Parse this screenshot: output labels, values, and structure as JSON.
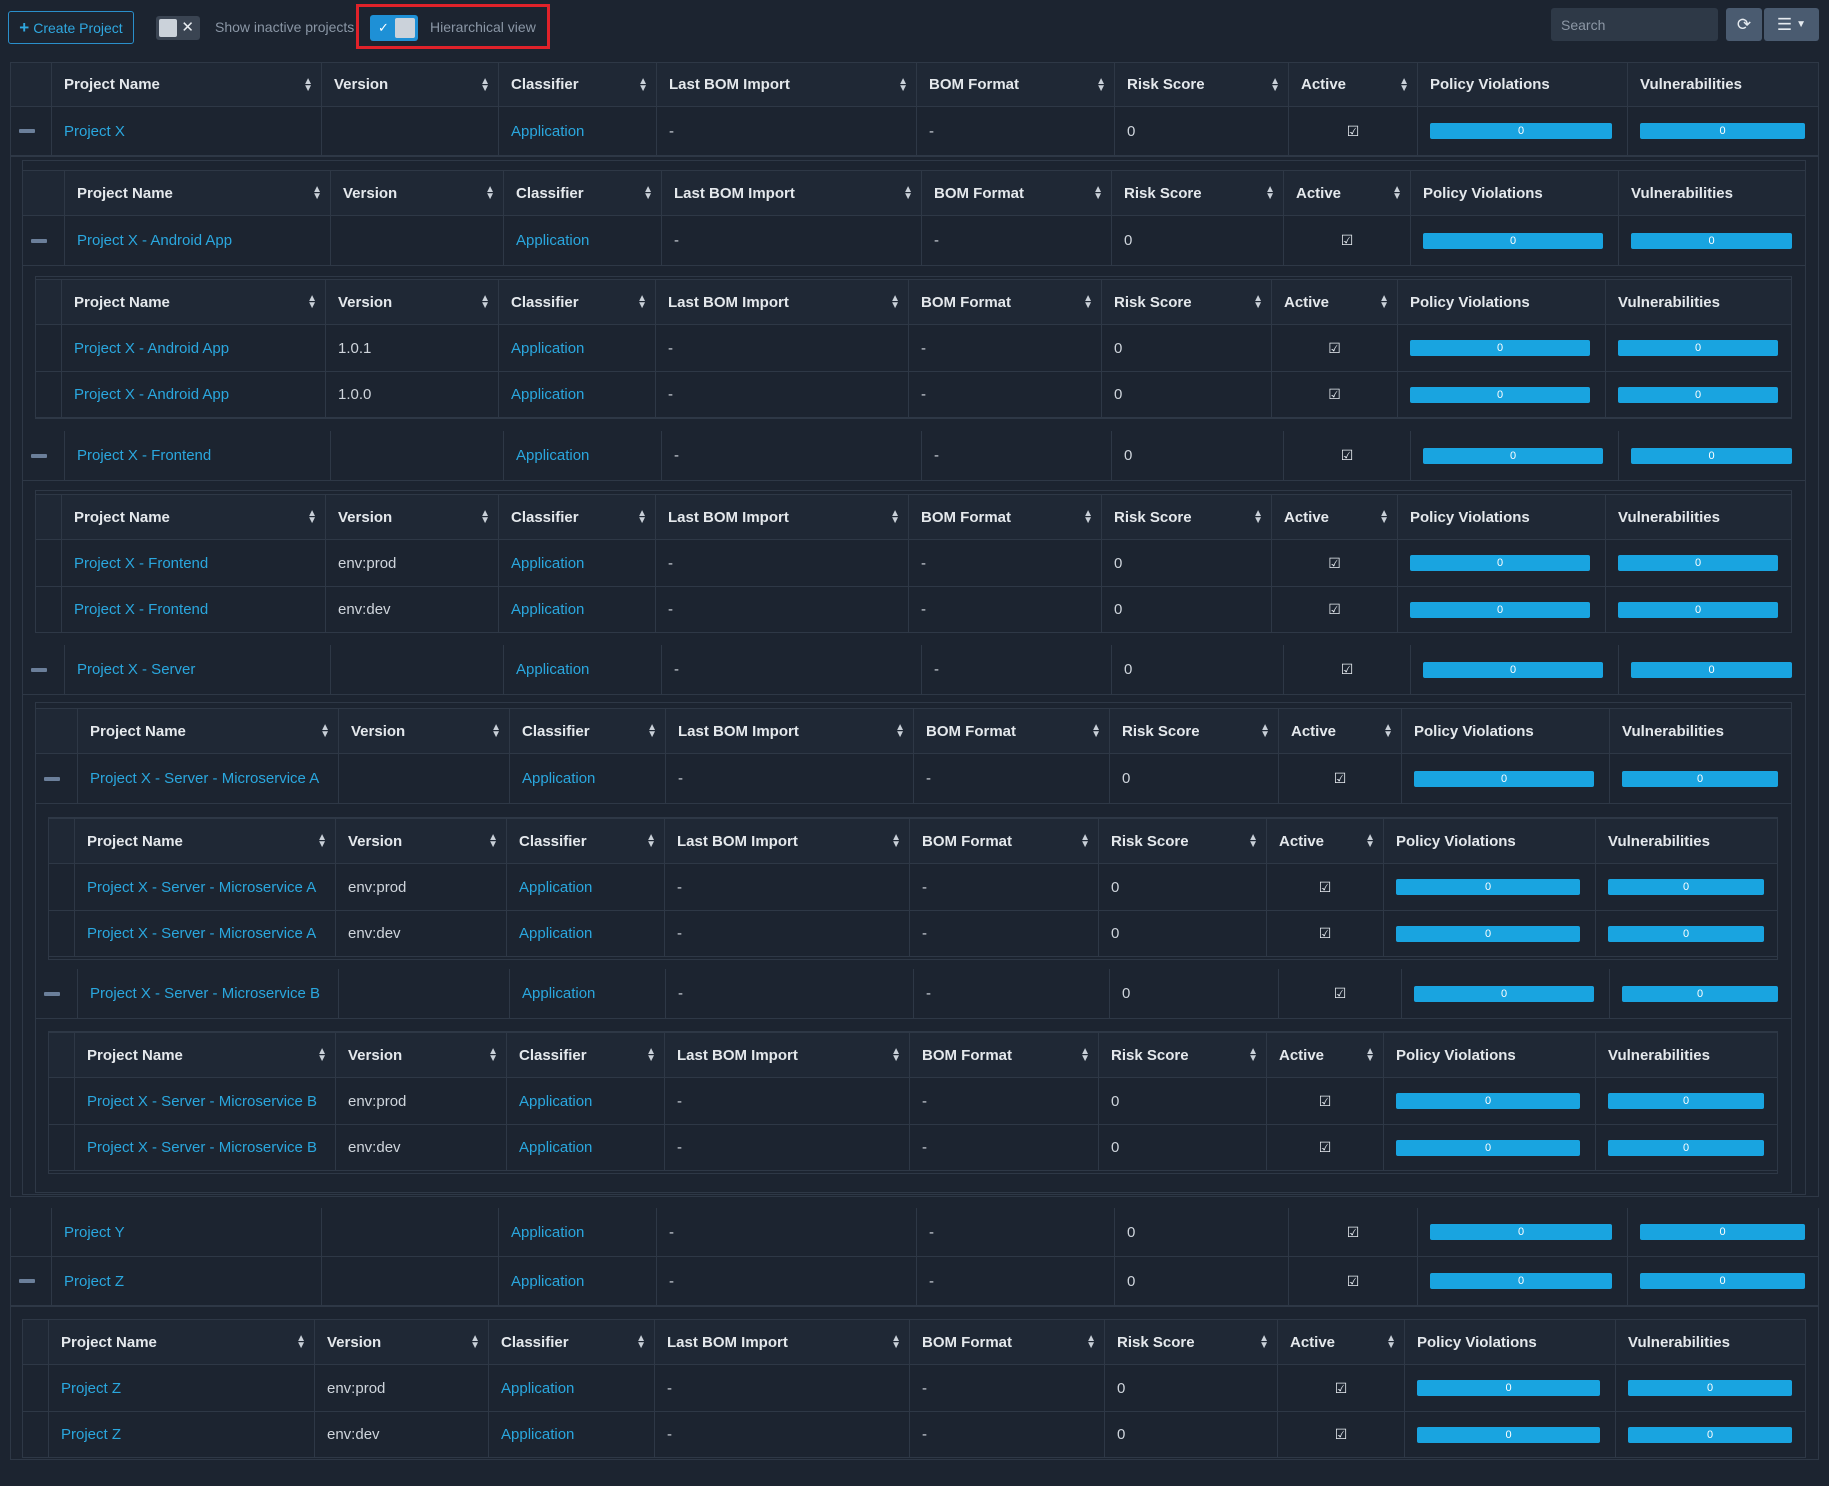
{
  "toolbar": {
    "create_label": "Create Project",
    "show_inactive_label": "Show inactive projects",
    "show_inactive_on": false,
    "hierarchical_label": "Hierarchical view",
    "hierarchical_on": true,
    "search_placeholder": "Search",
    "refresh_icon": "refresh-icon",
    "columns_icon": "list-icon"
  },
  "columns": [
    "Project Name",
    "Version",
    "Classifier",
    "Last BOM Import",
    "BOM Format",
    "Risk Score",
    "Active",
    "Policy Violations",
    "Vulnerabilities"
  ],
  "colors": {
    "accent": "#2aa7de",
    "bar": "#19a4e0",
    "highlight": "#e0222a",
    "background": "#1c2430"
  },
  "tables": [
    {
      "id": "root",
      "rows": [
        {
          "name": "Project X",
          "version": "",
          "classifier": "Application",
          "last_bom": "-",
          "bom_format": "-",
          "risk": "0",
          "active": true,
          "policy": "0",
          "vulns": "0",
          "expanded": true
        },
        {
          "name": "Project Y",
          "version": "",
          "classifier": "Application",
          "last_bom": "-",
          "bom_format": "-",
          "risk": "0",
          "active": true,
          "policy": "0",
          "vulns": "0",
          "expanded": false
        },
        {
          "name": "Project Z",
          "version": "",
          "classifier": "Application",
          "last_bom": "-",
          "bom_format": "-",
          "risk": "0",
          "active": true,
          "policy": "0",
          "vulns": "0",
          "expanded": true
        }
      ]
    },
    {
      "id": "x-children",
      "rows": [
        {
          "name": "Project X - Android App",
          "version": "",
          "classifier": "Application",
          "last_bom": "-",
          "bom_format": "-",
          "risk": "0",
          "active": true,
          "policy": "0",
          "vulns": "0",
          "expanded": true
        },
        {
          "name": "Project X - Frontend",
          "version": "",
          "classifier": "Application",
          "last_bom": "-",
          "bom_format": "-",
          "risk": "0",
          "active": true,
          "policy": "0",
          "vulns": "0",
          "expanded": true
        },
        {
          "name": "Project X - Server",
          "version": "",
          "classifier": "Application",
          "last_bom": "-",
          "bom_format": "-",
          "risk": "0",
          "active": true,
          "policy": "0",
          "vulns": "0",
          "expanded": true
        }
      ]
    },
    {
      "id": "android-versions",
      "rows": [
        {
          "name": "Project X - Android App",
          "version": "1.0.1",
          "classifier": "Application",
          "last_bom": "-",
          "bom_format": "-",
          "risk": "0",
          "active": true,
          "policy": "0",
          "vulns": "0"
        },
        {
          "name": "Project X - Android App",
          "version": "1.0.0",
          "classifier": "Application",
          "last_bom": "-",
          "bom_format": "-",
          "risk": "0",
          "active": true,
          "policy": "0",
          "vulns": "0"
        }
      ]
    },
    {
      "id": "frontend-versions",
      "rows": [
        {
          "name": "Project X - Frontend",
          "version": "env:prod",
          "classifier": "Application",
          "last_bom": "-",
          "bom_format": "-",
          "risk": "0",
          "active": true,
          "policy": "0",
          "vulns": "0"
        },
        {
          "name": "Project X - Frontend",
          "version": "env:dev",
          "classifier": "Application",
          "last_bom": "-",
          "bom_format": "-",
          "risk": "0",
          "active": true,
          "policy": "0",
          "vulns": "0"
        }
      ]
    },
    {
      "id": "server-children",
      "rows": [
        {
          "name": "Project X - Server - Microservice A",
          "version": "",
          "classifier": "Application",
          "last_bom": "-",
          "bom_format": "-",
          "risk": "0",
          "active": true,
          "policy": "0",
          "vulns": "0",
          "expanded": true
        },
        {
          "name": "Project X - Server - Microservice B",
          "version": "",
          "classifier": "Application",
          "last_bom": "-",
          "bom_format": "-",
          "risk": "0",
          "active": true,
          "policy": "0",
          "vulns": "0",
          "expanded": true
        }
      ]
    },
    {
      "id": "msa-versions",
      "rows": [
        {
          "name": "Project X - Server - Microservice A",
          "version": "env:prod",
          "classifier": "Application",
          "last_bom": "-",
          "bom_format": "-",
          "risk": "0",
          "active": true,
          "policy": "0",
          "vulns": "0"
        },
        {
          "name": "Project X - Server - Microservice A",
          "version": "env:dev",
          "classifier": "Application",
          "last_bom": "-",
          "bom_format": "-",
          "risk": "0",
          "active": true,
          "policy": "0",
          "vulns": "0"
        }
      ]
    },
    {
      "id": "msb-versions",
      "rows": [
        {
          "name": "Project X - Server - Microservice B",
          "version": "env:prod",
          "classifier": "Application",
          "last_bom": "-",
          "bom_format": "-",
          "risk": "0",
          "active": true,
          "policy": "0",
          "vulns": "0"
        },
        {
          "name": "Project X - Server - Microservice B",
          "version": "env:dev",
          "classifier": "Application",
          "last_bom": "-",
          "bom_format": "-",
          "risk": "0",
          "active": true,
          "policy": "0",
          "vulns": "0"
        }
      ]
    },
    {
      "id": "z-versions",
      "rows": [
        {
          "name": "Project Z",
          "version": "env:prod",
          "classifier": "Application",
          "last_bom": "-",
          "bom_format": "-",
          "risk": "0",
          "active": true,
          "policy": "0",
          "vulns": "0"
        },
        {
          "name": "Project Z",
          "version": "env:dev",
          "classifier": "Application",
          "last_bom": "-",
          "bom_format": "-",
          "risk": "0",
          "active": true,
          "policy": "0",
          "vulns": "0"
        }
      ]
    }
  ]
}
